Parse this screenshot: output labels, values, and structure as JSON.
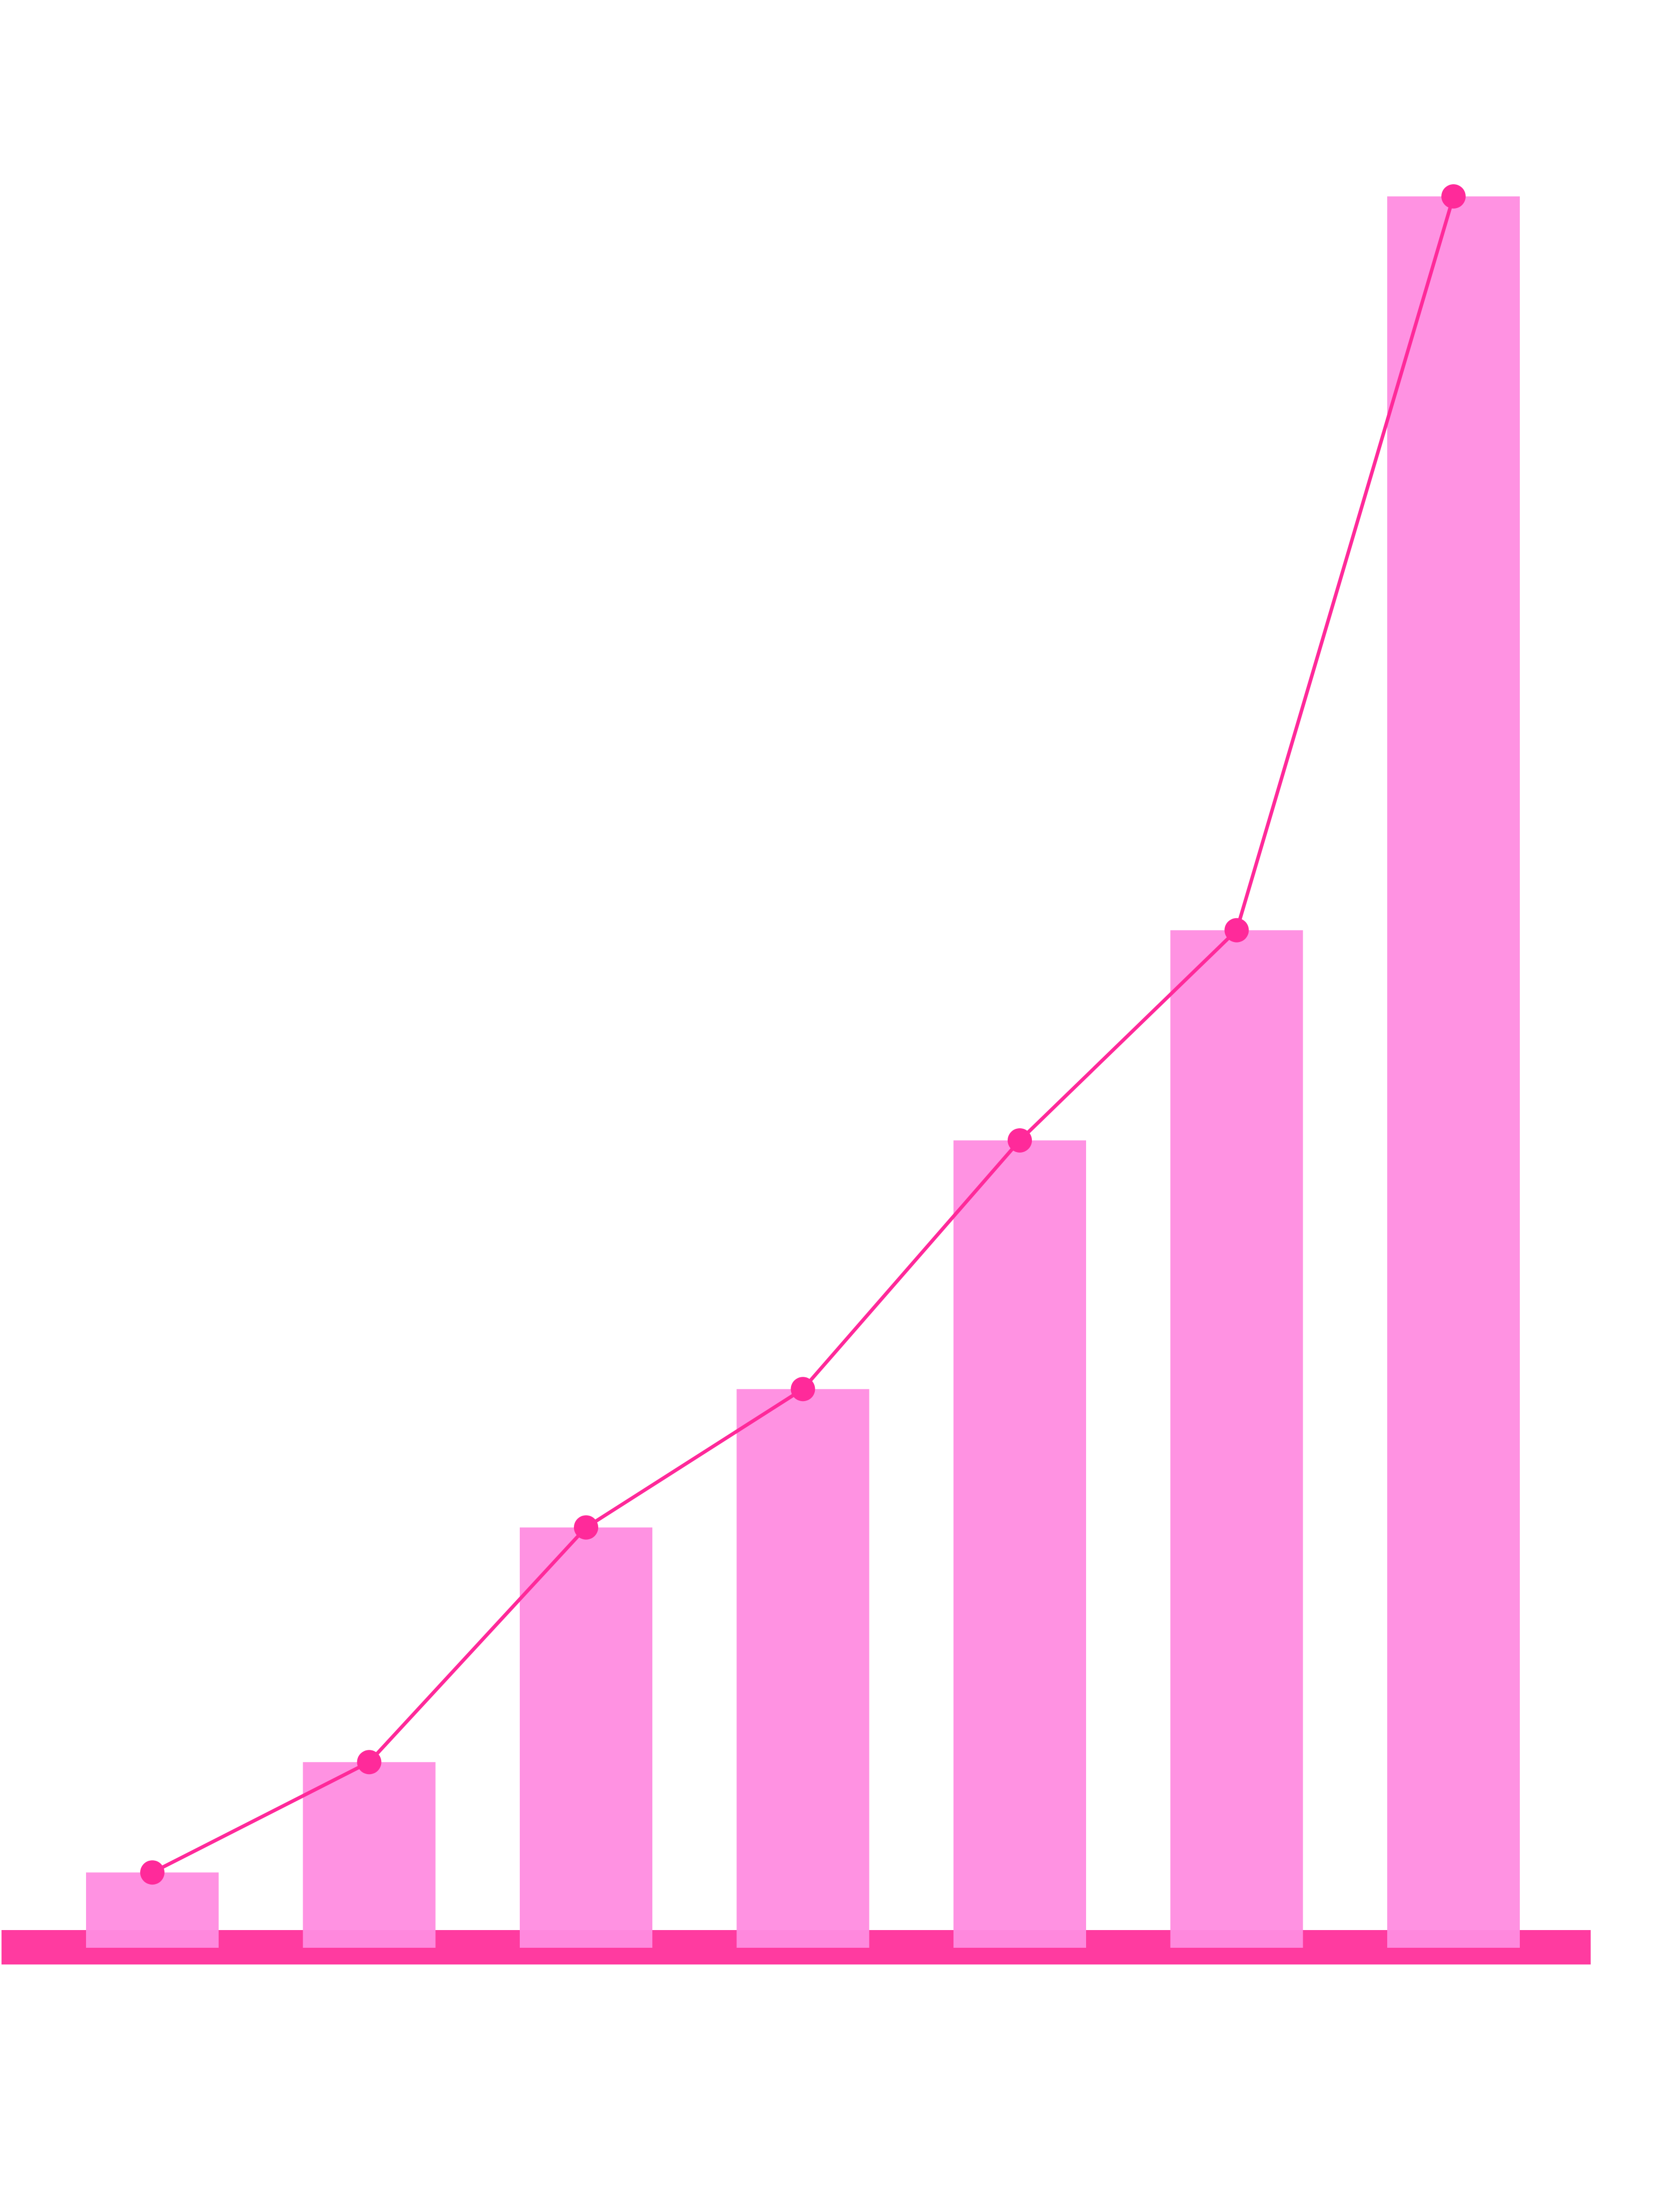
{
  "chart_data": {
    "type": "bar",
    "ylim": [
      0,
      100
    ],
    "baseline_color": "#ff3ba0",
    "series": [
      {
        "type": "bar",
        "color": "#ff8ce0",
        "values": [
          4.3,
          10.6,
          24.0,
          31.9,
          46.1,
          58.1,
          100
        ]
      },
      {
        "type": "line",
        "color": "#ff2a9a",
        "values": [
          4.3,
          10.6,
          24.0,
          31.9,
          46.1,
          58.1,
          100
        ]
      }
    ]
  }
}
